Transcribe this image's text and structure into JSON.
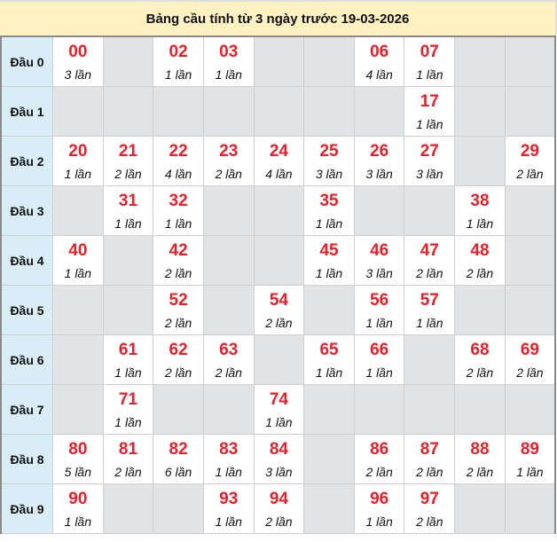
{
  "title": "Bảng cầu tính từ 3 ngày trước 19-03-2026",
  "colors": {
    "number": "#e8202a",
    "head_bg": "#d9edf7",
    "empty_bg": "#e2e3e5",
    "title_bg": "#fff2c2"
  },
  "rows": [
    {
      "label": "Đầu 0",
      "cells": [
        {
          "n": "00",
          "c": "3 lần"
        },
        {},
        {
          "n": "02",
          "c": "1 lần"
        },
        {
          "n": "03",
          "c": "1 lần"
        },
        {},
        {},
        {
          "n": "06",
          "c": "4 lần"
        },
        {
          "n": "07",
          "c": "1 lần"
        },
        {},
        {}
      ]
    },
    {
      "label": "Đầu 1",
      "cells": [
        {},
        {},
        {},
        {},
        {},
        {},
        {},
        {
          "n": "17",
          "c": "1 lần"
        },
        {},
        {}
      ]
    },
    {
      "label": "Đầu 2",
      "cells": [
        {
          "n": "20",
          "c": "1 lần"
        },
        {
          "n": "21",
          "c": "2 lần"
        },
        {
          "n": "22",
          "c": "4 lần"
        },
        {
          "n": "23",
          "c": "2 lần"
        },
        {
          "n": "24",
          "c": "4 lần"
        },
        {
          "n": "25",
          "c": "3 lần"
        },
        {
          "n": "26",
          "c": "3 lần"
        },
        {
          "n": "27",
          "c": "3 lần"
        },
        {},
        {
          "n": "29",
          "c": "2 lần"
        }
      ]
    },
    {
      "label": "Đầu 3",
      "cells": [
        {},
        {
          "n": "31",
          "c": "1 lần"
        },
        {
          "n": "32",
          "c": "1 lần"
        },
        {},
        {},
        {
          "n": "35",
          "c": "1 lần"
        },
        {},
        {},
        {
          "n": "38",
          "c": "1 lần"
        },
        {}
      ]
    },
    {
      "label": "Đầu 4",
      "cells": [
        {
          "n": "40",
          "c": "1 lần"
        },
        {},
        {
          "n": "42",
          "c": "2 lần"
        },
        {},
        {},
        {
          "n": "45",
          "c": "1 lần"
        },
        {
          "n": "46",
          "c": "3 lần"
        },
        {
          "n": "47",
          "c": "2 lần"
        },
        {
          "n": "48",
          "c": "2 lần"
        },
        {}
      ]
    },
    {
      "label": "Đầu 5",
      "cells": [
        {},
        {},
        {
          "n": "52",
          "c": "2 lần"
        },
        {},
        {
          "n": "54",
          "c": "2 lần"
        },
        {},
        {
          "n": "56",
          "c": "1 lần"
        },
        {
          "n": "57",
          "c": "1 lần"
        },
        {},
        {}
      ]
    },
    {
      "label": "Đầu 6",
      "cells": [
        {},
        {
          "n": "61",
          "c": "1 lần"
        },
        {
          "n": "62",
          "c": "2 lần"
        },
        {
          "n": "63",
          "c": "2 lần"
        },
        {},
        {
          "n": "65",
          "c": "1 lần"
        },
        {
          "n": "66",
          "c": "1 lần"
        },
        {},
        {
          "n": "68",
          "c": "2 lần"
        },
        {
          "n": "69",
          "c": "2 lần"
        }
      ]
    },
    {
      "label": "Đầu 7",
      "cells": [
        {},
        {
          "n": "71",
          "c": "1 lần"
        },
        {},
        {},
        {
          "n": "74",
          "c": "1 lần"
        },
        {},
        {},
        {},
        {},
        {}
      ]
    },
    {
      "label": "Đầu 8",
      "cells": [
        {
          "n": "80",
          "c": "5 lần"
        },
        {
          "n": "81",
          "c": "2 lần"
        },
        {
          "n": "82",
          "c": "6 lần"
        },
        {
          "n": "83",
          "c": "1 lần"
        },
        {
          "n": "84",
          "c": "3 lần"
        },
        {},
        {
          "n": "86",
          "c": "2 lần"
        },
        {
          "n": "87",
          "c": "2 lần"
        },
        {
          "n": "88",
          "c": "2 lần"
        },
        {
          "n": "89",
          "c": "1 lần"
        }
      ]
    },
    {
      "label": "Đầu 9",
      "cells": [
        {
          "n": "90",
          "c": "1 lần"
        },
        {},
        {},
        {
          "n": "93",
          "c": "1 lần"
        },
        {
          "n": "94",
          "c": "2 lần"
        },
        {},
        {
          "n": "96",
          "c": "1 lần"
        },
        {
          "n": "97",
          "c": "2 lần"
        },
        {},
        {}
      ]
    }
  ]
}
